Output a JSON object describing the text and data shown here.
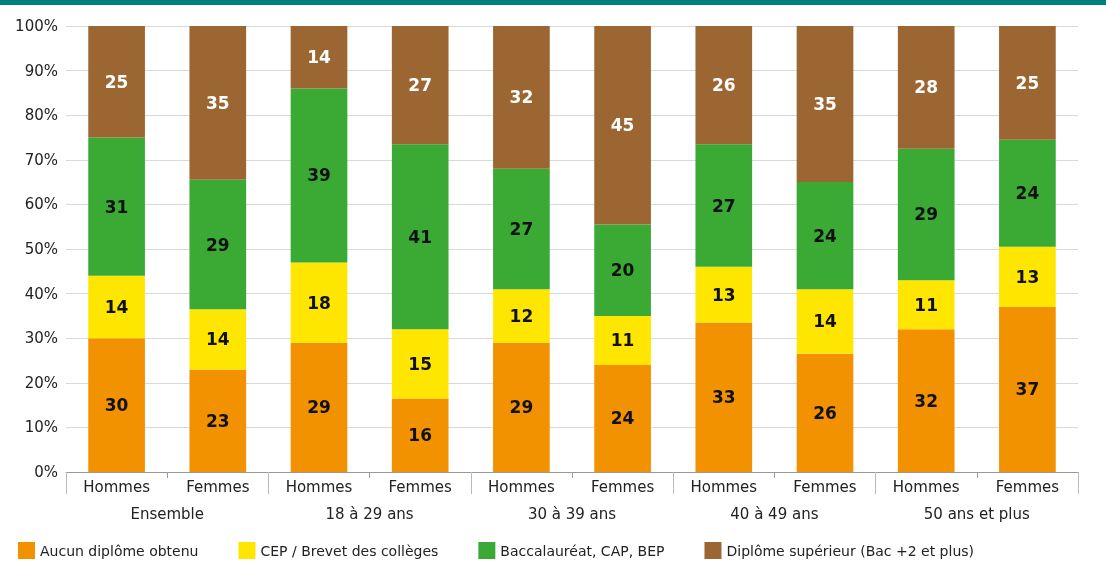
{
  "chart_data": {
    "type": "bar",
    "stacked": true,
    "categories": [
      "Hommes",
      "Femmes",
      "Hommes",
      "Femmes",
      "Hommes",
      "Femmes",
      "Hommes",
      "Femmes",
      "Hommes",
      "Femmes"
    ],
    "annotations": [
      "Ensemble",
      "18 à 29 ans",
      "30 à 39 ans",
      "40 à 49 ans",
      "50 ans et plus"
    ],
    "series": [
      {
        "name": "Aucun diplôme obtenu",
        "color": "#f39200",
        "values": [
          30,
          23,
          29,
          16.5,
          29,
          24,
          33.5,
          26.5,
          32,
          37
        ],
        "value_labels": [
          "30",
          "23",
          "29",
          "16",
          "29",
          "24",
          "33",
          "26",
          "32",
          "37"
        ]
      },
      {
        "name": "CEP / Brevet des collèges",
        "color": "#ffe600",
        "values": [
          14,
          13.5,
          18,
          15.5,
          12,
          11,
          12.5,
          14.5,
          11,
          13.5
        ],
        "value_labels": [
          "14",
          "14",
          "18",
          "15",
          "12",
          "11",
          "13",
          "14",
          "11",
          "13"
        ]
      },
      {
        "name": "Baccalauréat, CAP, BEP",
        "color": "#3aaa35",
        "values": [
          31,
          29,
          39,
          41.5,
          27,
          20.5,
          27.5,
          24,
          29.5,
          24
        ],
        "value_labels": [
          "31",
          "29",
          "39",
          "41",
          "27",
          "20",
          "27",
          "24",
          "29",
          "24"
        ]
      },
      {
        "name": "Diplôme supérieur (Bac +2 et plus)",
        "color": "#9c6632",
        "values": [
          25,
          34.5,
          14,
          26.5,
          32,
          44.5,
          26.5,
          35,
          27.5,
          25.5
        ],
        "value_labels": [
          "25",
          "35",
          "14",
          "27",
          "32",
          "45",
          "26",
          "35",
          "28",
          "25"
        ]
      }
    ],
    "ylim": [
      0,
      100
    ],
    "yticks": [
      {
        "value": 0,
        "label": "0%"
      },
      {
        "value": 10,
        "label": "10%"
      },
      {
        "value": 20,
        "label": "20%"
      },
      {
        "value": 30,
        "label": "30%"
      },
      {
        "value": 40,
        "label": "40%"
      },
      {
        "value": 50,
        "label": "50%"
      },
      {
        "value": 60,
        "label": "60%"
      },
      {
        "value": 70,
        "label": "70%"
      },
      {
        "value": 80,
        "label": "80%"
      },
      {
        "value": 90,
        "label": "90%"
      },
      {
        "value": 100,
        "label": "100%"
      }
    ],
    "grid": "y",
    "legend": "bottom"
  }
}
